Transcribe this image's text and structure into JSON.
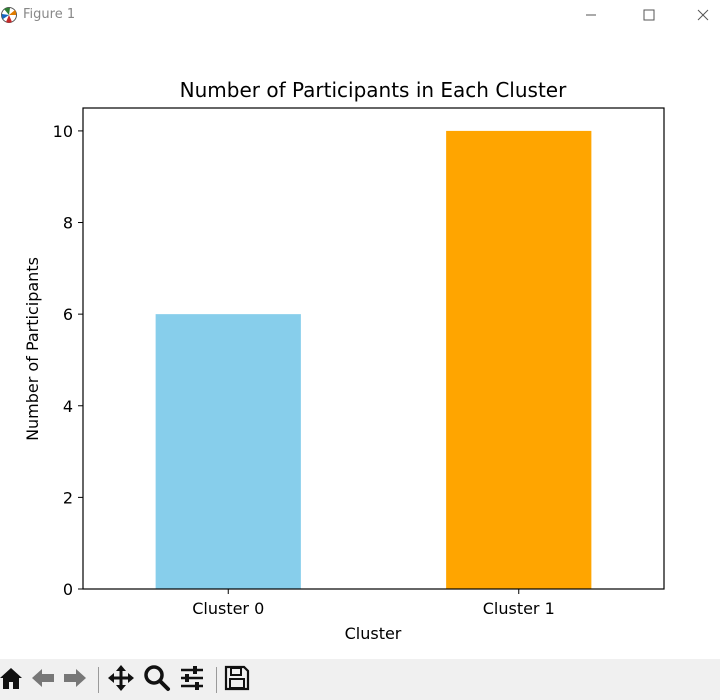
{
  "window": {
    "title": "Figure 1",
    "minimize_icon": "minimize-icon",
    "maximize_icon": "maximize-icon",
    "close_icon": "close-icon"
  },
  "toolbar": {
    "buttons": [
      "home-icon",
      "back-icon",
      "forward-icon",
      "pan-icon",
      "zoom-icon",
      "configure-subplots-icon",
      "save-icon"
    ]
  },
  "chart_data": {
    "type": "bar",
    "title": "Number of Participants in Each Cluster",
    "xlabel": "Cluster",
    "ylabel": "Number of Participants",
    "categories": [
      "Cluster 0",
      "Cluster 1"
    ],
    "values": [
      6,
      10
    ],
    "colors": [
      "#87ceeb",
      "#ffa500"
    ],
    "ylim": [
      0,
      10.5
    ],
    "yticks": [
      0,
      2,
      4,
      6,
      8,
      10
    ],
    "grid": false
  }
}
